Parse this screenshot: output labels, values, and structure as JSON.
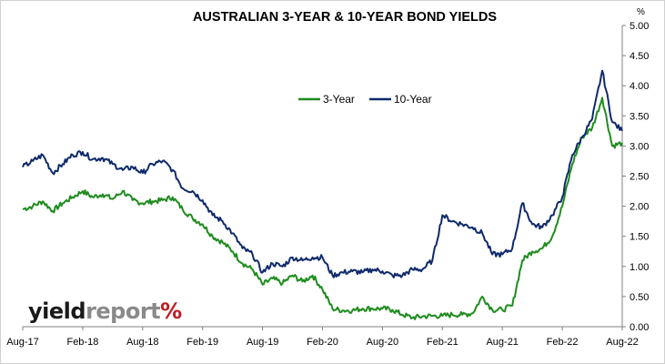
{
  "logo": {
    "part1": "yield",
    "part2": "report",
    "part3": "%"
  },
  "chart_data": {
    "type": "line",
    "title": "AUSTRALIAN 3-YEAR & 10-YEAR BOND YIELDS",
    "xlabel": "",
    "ylabel": "%",
    "y_axis_side": "right",
    "ylim": [
      0,
      5
    ],
    "y_ticks": [
      "0.00",
      "0.50",
      "1.00",
      "1.50",
      "2.00",
      "2.50",
      "3.00",
      "3.50",
      "4.00",
      "4.50",
      "5.00"
    ],
    "x_ticks": [
      "Aug-17",
      "Feb-18",
      "Aug-18",
      "Feb-19",
      "Aug-19",
      "Feb-20",
      "Aug-20",
      "Feb-21",
      "Aug-21",
      "Feb-22",
      "Aug-22"
    ],
    "grid": false,
    "legend": "top-center",
    "x": [
      "Aug-17",
      "Sep-17",
      "Oct-17",
      "Nov-17",
      "Dec-17",
      "Jan-18",
      "Feb-18",
      "Mar-18",
      "Apr-18",
      "May-18",
      "Jun-18",
      "Jul-18",
      "Aug-18",
      "Sep-18",
      "Oct-18",
      "Nov-18",
      "Dec-18",
      "Jan-19",
      "Feb-19",
      "Mar-19",
      "Apr-19",
      "May-19",
      "Jun-19",
      "Jul-19",
      "Aug-19",
      "Sep-19",
      "Oct-19",
      "Nov-19",
      "Dec-19",
      "Jan-20",
      "Feb-20",
      "Mar-20",
      "Apr-20",
      "May-20",
      "Jun-20",
      "Jul-20",
      "Aug-20",
      "Sep-20",
      "Oct-20",
      "Nov-20",
      "Dec-20",
      "Jan-21",
      "Feb-21",
      "Mar-21",
      "Apr-21",
      "May-21",
      "Jun-21",
      "Jul-21",
      "Aug-21",
      "Sep-21",
      "Oct-21",
      "Nov-21",
      "Dec-21",
      "Jan-22",
      "Feb-22",
      "Mar-22",
      "Apr-22",
      "May-22",
      "Jun-22",
      "Jul-22",
      "Aug-22"
    ],
    "series": [
      {
        "name": "3-Year",
        "color": "#1e8c1e",
        "values": [
          1.95,
          2.0,
          2.08,
          1.92,
          2.05,
          2.15,
          2.25,
          2.15,
          2.2,
          2.12,
          2.25,
          2.1,
          2.05,
          2.08,
          2.1,
          2.15,
          1.95,
          1.8,
          1.7,
          1.5,
          1.4,
          1.25,
          1.05,
          0.95,
          0.7,
          0.8,
          0.72,
          0.85,
          0.75,
          0.85,
          0.62,
          0.3,
          0.27,
          0.27,
          0.3,
          0.3,
          0.3,
          0.28,
          0.2,
          0.15,
          0.17,
          0.18,
          0.18,
          0.2,
          0.2,
          0.22,
          0.5,
          0.28,
          0.28,
          0.35,
          1.1,
          1.25,
          1.3,
          1.5,
          2.0,
          2.7,
          3.15,
          3.3,
          3.8,
          3.0,
          3.05
        ]
      },
      {
        "name": "10-Year",
        "color": "#0f2a6b",
        "values": [
          2.65,
          2.75,
          2.85,
          2.55,
          2.7,
          2.85,
          2.9,
          2.78,
          2.8,
          2.7,
          2.6,
          2.65,
          2.55,
          2.7,
          2.75,
          2.6,
          2.3,
          2.25,
          2.1,
          1.85,
          1.75,
          1.55,
          1.3,
          1.2,
          0.9,
          1.05,
          1.0,
          1.15,
          1.1,
          1.15,
          1.15,
          0.85,
          0.9,
          0.92,
          0.9,
          0.95,
          0.92,
          0.85,
          0.85,
          0.95,
          0.95,
          1.1,
          1.85,
          1.75,
          1.7,
          1.65,
          1.55,
          1.2,
          1.2,
          1.3,
          2.05,
          1.7,
          1.65,
          1.85,
          2.15,
          2.85,
          3.15,
          3.45,
          4.25,
          3.4,
          3.25
        ]
      }
    ]
  }
}
